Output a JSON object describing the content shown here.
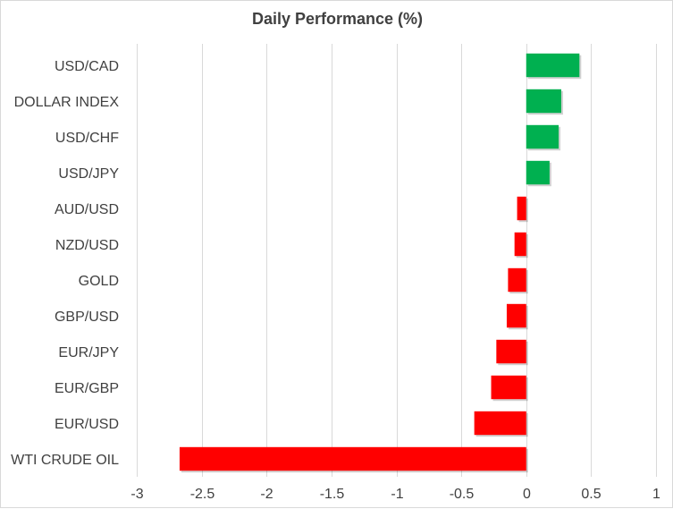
{
  "chart_data": {
    "type": "bar",
    "orientation": "horizontal",
    "title": "Daily Performance (%)",
    "categories": [
      "USD/CAD",
      "DOLLAR INDEX",
      "USD/CHF",
      "USD/JPY",
      "AUD/USD",
      "NZD/USD",
      "GOLD",
      "GBP/USD",
      "EUR/JPY",
      "EUR/GBP",
      "EUR/USD",
      "WTI CRUDE OIL"
    ],
    "values": [
      0.41,
      0.27,
      0.25,
      0.18,
      -0.07,
      -0.09,
      -0.14,
      -0.15,
      -0.23,
      -0.27,
      -0.4,
      -2.67
    ],
    "xlim": [
      -3,
      1
    ],
    "xticks": [
      "-3",
      "-2.5",
      "-2",
      "-1.5",
      "-1",
      "-0.5",
      "0",
      "0.5",
      "1"
    ],
    "xtick_values": [
      -3,
      -2.5,
      -2,
      -1.5,
      -1,
      -0.5,
      0,
      0.5,
      1
    ],
    "grid": true,
    "legend": "none",
    "colors": {
      "positive": "#00b050",
      "negative": "#ff0000",
      "grid": "#d9d9d9",
      "text": "#404040"
    }
  }
}
